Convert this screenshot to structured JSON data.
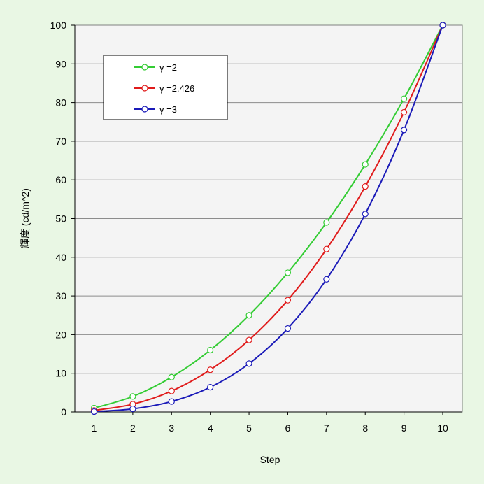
{
  "chart_data": {
    "type": "line",
    "title": "",
    "xlabel": "Step",
    "ylabel": "輝度 (cd/m^2)",
    "categories": [
      "1",
      "2",
      "3",
      "4",
      "5",
      "6",
      "7",
      "8",
      "9",
      "10"
    ],
    "xlim": [
      1,
      10
    ],
    "ylim": [
      0,
      100
    ],
    "yticks": [
      0,
      10,
      20,
      30,
      40,
      50,
      60,
      70,
      80,
      90,
      100
    ],
    "grid": true,
    "legend_position": "top-left",
    "series": [
      {
        "name": "γ =2",
        "color": "#33cc33",
        "values": [
          1,
          4,
          9,
          16,
          25,
          36,
          49,
          64,
          81,
          100
        ]
      },
      {
        "name": "γ =2.426",
        "color": "#e01b1b",
        "values": [
          0.4,
          2.0,
          5.4,
          10.9,
          18.6,
          28.9,
          42.1,
          58.3,
          77.5,
          100
        ]
      },
      {
        "name": "γ =3",
        "color": "#1a1ab8",
        "values": [
          0.1,
          0.8,
          2.7,
          6.4,
          12.5,
          21.6,
          34.3,
          51.2,
          72.9,
          100
        ]
      }
    ]
  }
}
